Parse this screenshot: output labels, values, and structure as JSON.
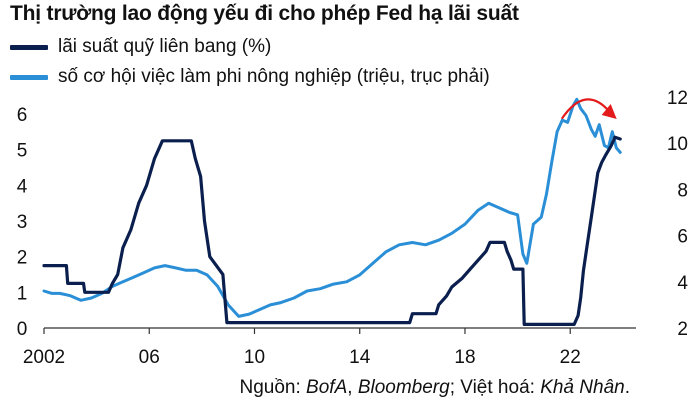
{
  "chart_data": {
    "type": "line",
    "title": "Thị trường lao động yếu đi cho phép Fed hạ lãi suất",
    "x_range": [
      2002,
      2024.5
    ],
    "x_ticks": [
      2002,
      2006,
      2010,
      2014,
      2018,
      2022
    ],
    "x_tick_labels": [
      "2002",
      "06",
      "10",
      "14",
      "18",
      "22"
    ],
    "y_left": {
      "range": [
        0,
        6
      ],
      "ticks": [
        0,
        1,
        2,
        3,
        4,
        5,
        6
      ]
    },
    "y_right": {
      "range": [
        2,
        12
      ],
      "ticks": [
        2,
        4,
        6,
        8,
        10,
        12
      ]
    },
    "grid": false,
    "series": [
      {
        "name": "lãi suất quỹ liên bang (%)",
        "axis": "left",
        "color": "#0b1f4f",
        "points": [
          [
            2002.0,
            1.75
          ],
          [
            2002.85,
            1.75
          ],
          [
            2002.9,
            1.25
          ],
          [
            2003.5,
            1.25
          ],
          [
            2003.55,
            1.0
          ],
          [
            2004.45,
            1.0
          ],
          [
            2004.6,
            1.25
          ],
          [
            2004.8,
            1.5
          ],
          [
            2005.0,
            2.25
          ],
          [
            2005.3,
            2.75
          ],
          [
            2005.6,
            3.5
          ],
          [
            2005.9,
            4.0
          ],
          [
            2006.2,
            4.75
          ],
          [
            2006.5,
            5.25
          ],
          [
            2007.6,
            5.25
          ],
          [
            2007.75,
            4.75
          ],
          [
            2007.95,
            4.25
          ],
          [
            2008.1,
            3.0
          ],
          [
            2008.3,
            2.0
          ],
          [
            2008.8,
            1.5
          ],
          [
            2008.95,
            0.15
          ],
          [
            2015.9,
            0.15
          ],
          [
            2016.0,
            0.4
          ],
          [
            2016.9,
            0.4
          ],
          [
            2017.0,
            0.65
          ],
          [
            2017.3,
            0.9
          ],
          [
            2017.5,
            1.15
          ],
          [
            2017.9,
            1.4
          ],
          [
            2018.2,
            1.65
          ],
          [
            2018.5,
            1.9
          ],
          [
            2018.8,
            2.15
          ],
          [
            2018.95,
            2.4
          ],
          [
            2019.5,
            2.4
          ],
          [
            2019.6,
            2.15
          ],
          [
            2019.75,
            1.9
          ],
          [
            2019.85,
            1.65
          ],
          [
            2020.2,
            1.65
          ],
          [
            2020.25,
            0.1
          ],
          [
            2022.15,
            0.1
          ],
          [
            2022.3,
            0.35
          ],
          [
            2022.4,
            0.85
          ],
          [
            2022.5,
            1.6
          ],
          [
            2022.65,
            2.35
          ],
          [
            2022.8,
            3.1
          ],
          [
            2022.95,
            3.85
          ],
          [
            2023.05,
            4.35
          ],
          [
            2023.2,
            4.65
          ],
          [
            2023.35,
            4.85
          ],
          [
            2023.55,
            5.1
          ],
          [
            2023.7,
            5.35
          ],
          [
            2023.9,
            5.3
          ]
        ]
      },
      {
        "name": "số cơ hội việc làm phi nông nghiệp (triệu, trục phải)",
        "axis": "right",
        "color": "#2a8fd6",
        "points": [
          [
            2002.0,
            3.6
          ],
          [
            2002.3,
            3.5
          ],
          [
            2002.6,
            3.5
          ],
          [
            2003.0,
            3.4
          ],
          [
            2003.4,
            3.2
          ],
          [
            2003.8,
            3.3
          ],
          [
            2004.2,
            3.5
          ],
          [
            2004.6,
            3.8
          ],
          [
            2005.0,
            4.0
          ],
          [
            2005.4,
            4.2
          ],
          [
            2005.8,
            4.4
          ],
          [
            2006.2,
            4.6
          ],
          [
            2006.6,
            4.7
          ],
          [
            2007.0,
            4.6
          ],
          [
            2007.4,
            4.5
          ],
          [
            2007.8,
            4.5
          ],
          [
            2008.2,
            4.3
          ],
          [
            2008.6,
            3.8
          ],
          [
            2009.0,
            3.0
          ],
          [
            2009.4,
            2.5
          ],
          [
            2009.8,
            2.6
          ],
          [
            2010.2,
            2.8
          ],
          [
            2010.6,
            3.0
          ],
          [
            2011.0,
            3.1
          ],
          [
            2011.5,
            3.3
          ],
          [
            2012.0,
            3.6
          ],
          [
            2012.5,
            3.7
          ],
          [
            2013.0,
            3.9
          ],
          [
            2013.5,
            4.0
          ],
          [
            2014.0,
            4.3
          ],
          [
            2014.5,
            4.8
          ],
          [
            2015.0,
            5.3
          ],
          [
            2015.5,
            5.6
          ],
          [
            2016.0,
            5.7
          ],
          [
            2016.5,
            5.6
          ],
          [
            2017.0,
            5.8
          ],
          [
            2017.5,
            6.1
          ],
          [
            2018.0,
            6.5
          ],
          [
            2018.5,
            7.1
          ],
          [
            2018.9,
            7.4
          ],
          [
            2019.3,
            7.2
          ],
          [
            2019.7,
            7.0
          ],
          [
            2020.0,
            6.9
          ],
          [
            2020.2,
            5.2
          ],
          [
            2020.35,
            4.8
          ],
          [
            2020.6,
            6.5
          ],
          [
            2020.9,
            6.8
          ],
          [
            2021.1,
            7.8
          ],
          [
            2021.3,
            9.2
          ],
          [
            2021.5,
            10.5
          ],
          [
            2021.7,
            11.0
          ],
          [
            2021.9,
            10.9
          ],
          [
            2022.1,
            11.6
          ],
          [
            2022.25,
            11.9
          ],
          [
            2022.4,
            11.5
          ],
          [
            2022.6,
            11.2
          ],
          [
            2022.8,
            10.6
          ],
          [
            2022.95,
            10.3
          ],
          [
            2023.1,
            10.8
          ],
          [
            2023.3,
            9.9
          ],
          [
            2023.45,
            9.8
          ],
          [
            2023.6,
            10.5
          ],
          [
            2023.75,
            9.8
          ],
          [
            2023.9,
            9.6
          ]
        ]
      }
    ],
    "annotation": {
      "type": "curved-arrow",
      "color": "#e31b1b",
      "x": [
        2021.7,
        2023.5
      ]
    }
  },
  "source": {
    "prefix": "Nguồn: ",
    "bofa": "BofA",
    "sep1": ", ",
    "bloomberg": "Bloomberg",
    "mid": "; Việt hoá: ",
    "author": "Khả Nhân",
    "suffix": "."
  }
}
